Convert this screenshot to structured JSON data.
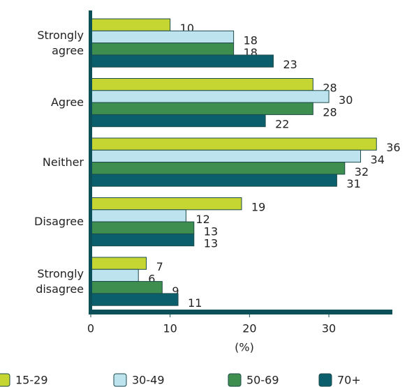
{
  "chart_data": {
    "type": "hbar",
    "categories": [
      "Strongly agree",
      "Agree",
      "Neither",
      "Disagree",
      "Strongly disagree"
    ],
    "series": [
      {
        "name": "15-29",
        "color": "#c5d633",
        "values": [
          10,
          28,
          36,
          19,
          7
        ]
      },
      {
        "name": "30-49",
        "color": "#bde3ee",
        "values": [
          18,
          30,
          34,
          12,
          6
        ]
      },
      {
        "name": "50-69",
        "color": "#3e8f4f",
        "values": [
          18,
          28,
          32,
          13,
          9
        ]
      },
      {
        "name": "70+",
        "color": "#0b5e6b",
        "values": [
          23,
          22,
          31,
          13,
          11
        ]
      }
    ],
    "xlabel": "(%)",
    "xlim": [
      0,
      38
    ],
    "xticks": [
      0,
      10,
      20,
      30
    ]
  }
}
